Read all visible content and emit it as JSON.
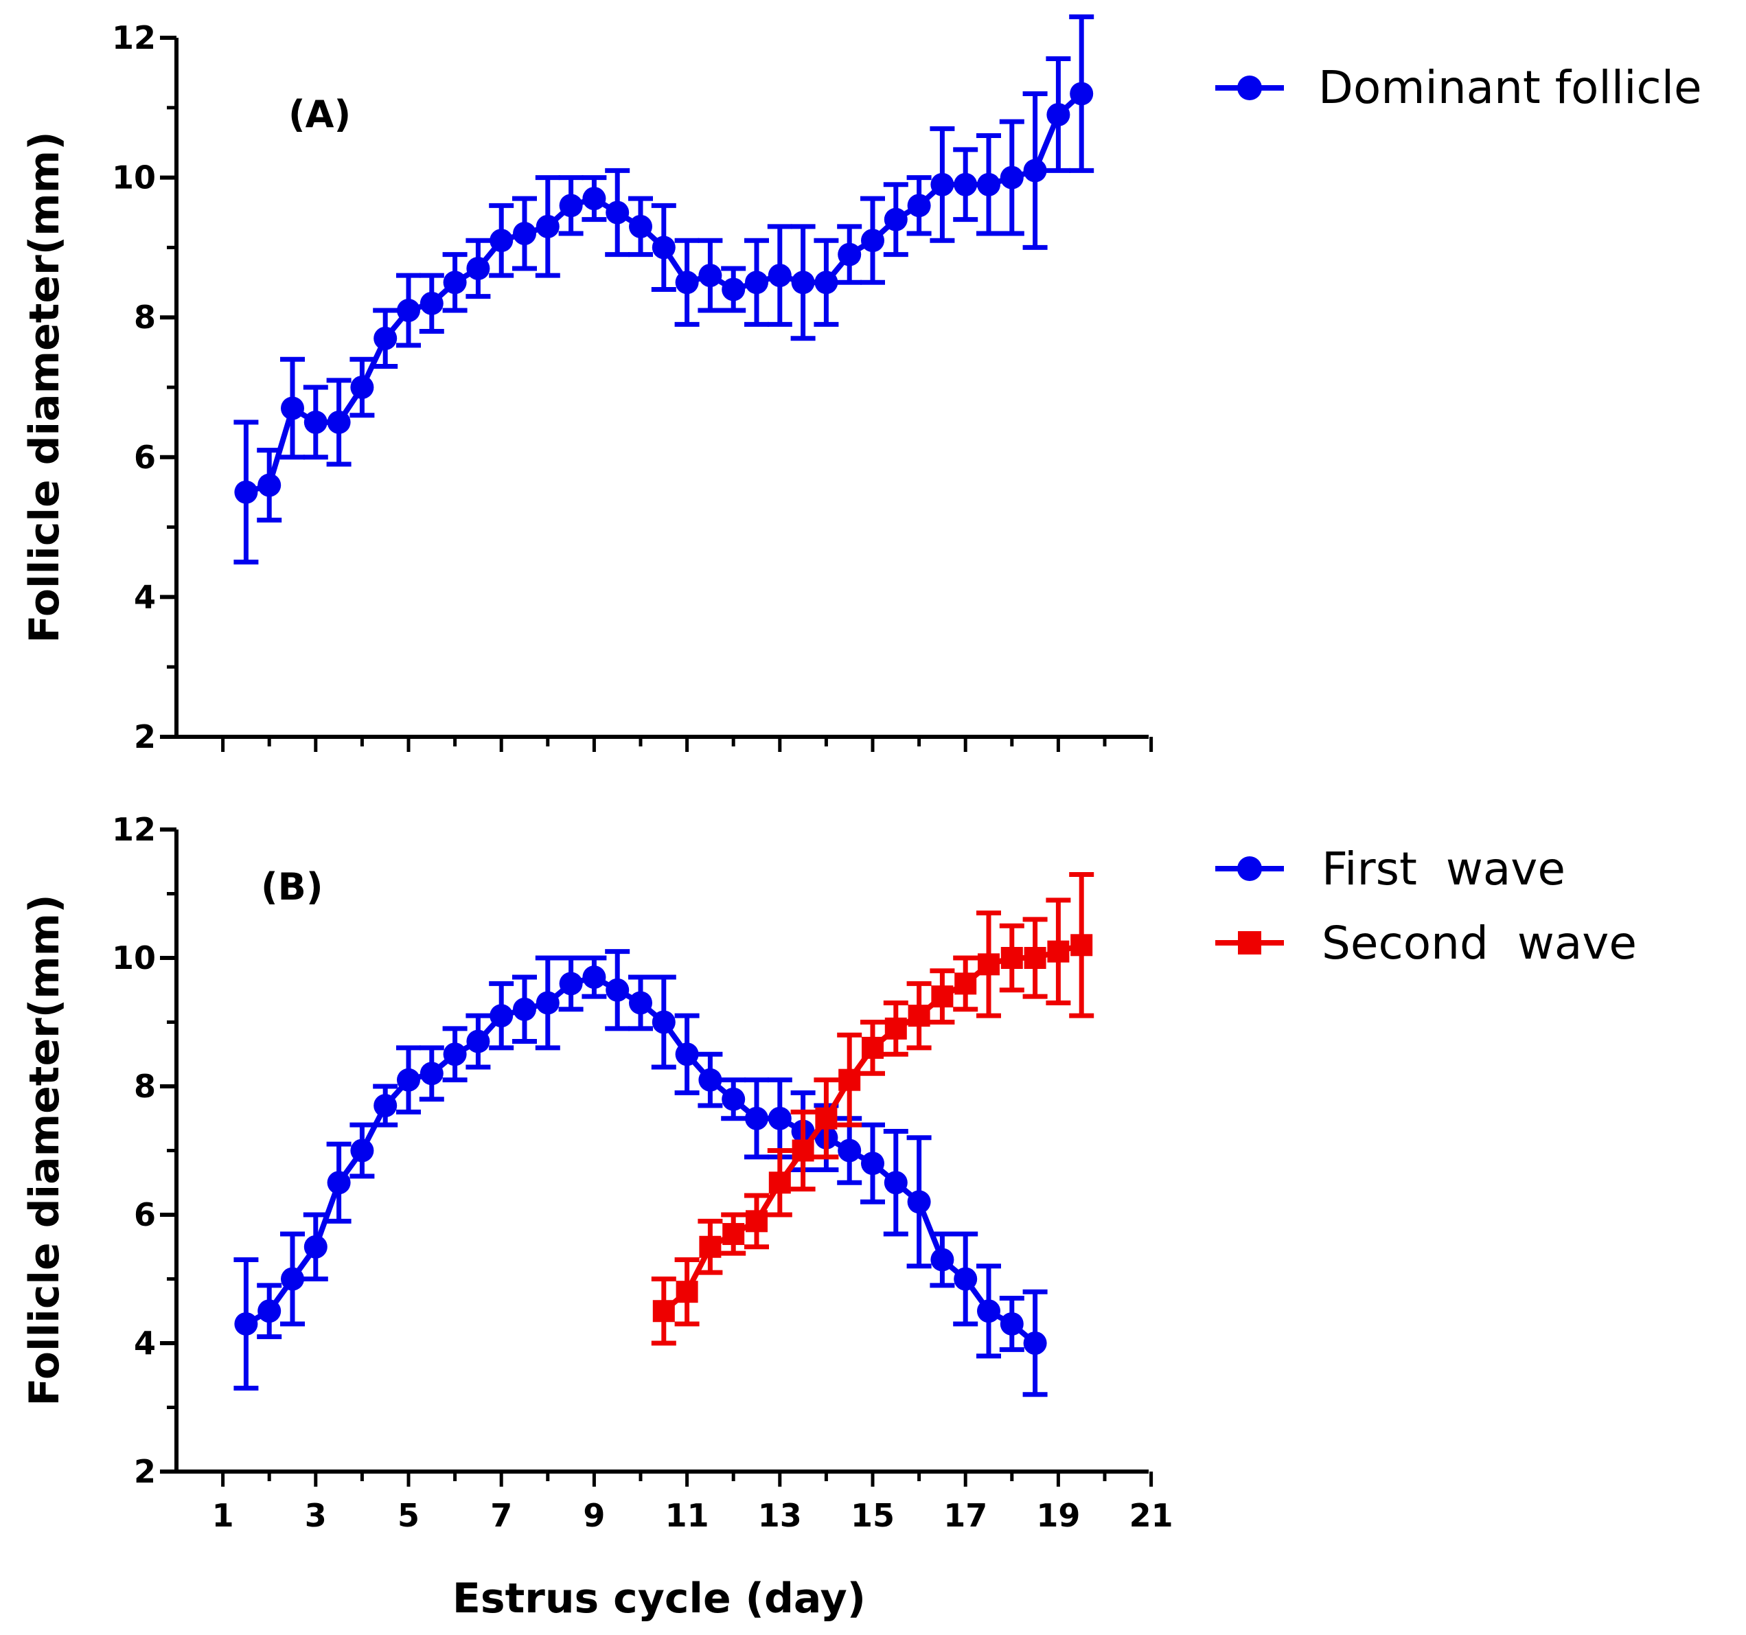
{
  "chart_data": [
    {
      "type": "line",
      "panel_label": "(A)",
      "xlabel": "",
      "ylabel": "Follicle diameter(mm)",
      "xlim": [
        0,
        21
      ],
      "ylim": [
        2,
        12
      ],
      "xticks": [
        1,
        3,
        5,
        7,
        9,
        11,
        13,
        15,
        17,
        19,
        21
      ],
      "yticks": [
        2,
        4,
        6,
        8,
        10,
        12
      ],
      "show_x_tick_labels": false,
      "grid": false,
      "legend_position": "top-right outside",
      "series": [
        {
          "name": "Dominant follicle",
          "color": "#0000ee",
          "marker": "circle",
          "x": [
            1.5,
            2,
            2.5,
            3,
            3.5,
            4,
            4.5,
            5,
            5.5,
            6,
            6.5,
            7,
            7.5,
            8,
            8.5,
            9,
            9.5,
            10,
            10.5,
            11,
            11.5,
            12,
            12.5,
            13,
            13.5,
            14,
            14.5,
            15,
            15.5,
            16,
            16.5,
            17,
            17.5,
            18,
            18.5,
            19,
            19.5
          ],
          "y": [
            5.5,
            5.6,
            6.7,
            6.5,
            6.5,
            7.0,
            7.7,
            8.1,
            8.2,
            8.5,
            8.7,
            9.1,
            9.2,
            9.3,
            9.6,
            9.7,
            9.5,
            9.3,
            9.0,
            8.5,
            8.6,
            8.4,
            8.5,
            8.6,
            8.5,
            8.5,
            8.9,
            9.1,
            9.4,
            9.6,
            9.9,
            9.9,
            9.9,
            10.0,
            10.1,
            10.9,
            11.2
          ],
          "error": [
            1.0,
            0.5,
            0.7,
            0.5,
            0.6,
            0.4,
            0.4,
            0.5,
            0.4,
            0.4,
            0.4,
            0.5,
            0.5,
            0.7,
            0.4,
            0.3,
            0.6,
            0.4,
            0.6,
            0.6,
            0.5,
            0.3,
            0.6,
            0.7,
            0.8,
            0.6,
            0.4,
            0.6,
            0.5,
            0.4,
            0.8,
            0.5,
            0.7,
            0.8,
            1.1,
            0.8,
            1.1
          ]
        }
      ]
    },
    {
      "type": "line",
      "panel_label": "(B)",
      "xlabel": "Estrus cycle (day)",
      "ylabel": "Follicle diameter(mm)",
      "xlim": [
        0,
        21
      ],
      "ylim": [
        2,
        12
      ],
      "xticks": [
        1,
        3,
        5,
        7,
        9,
        11,
        13,
        15,
        17,
        19,
        21
      ],
      "yticks": [
        2,
        4,
        6,
        8,
        10,
        12
      ],
      "show_x_tick_labels": true,
      "grid": false,
      "legend_position": "top-right outside",
      "series": [
        {
          "name": "First  wave",
          "color": "#0000ee",
          "marker": "circle",
          "x": [
            1.5,
            2,
            2.5,
            3,
            3.5,
            4,
            4.5,
            5,
            5.5,
            6,
            6.5,
            7,
            7.5,
            8,
            8.5,
            9,
            9.5,
            10,
            10.5,
            11,
            11.5,
            12,
            12.5,
            13,
            13.5,
            14,
            14.5,
            15,
            15.5,
            16,
            16.5,
            17,
            17.5,
            18,
            18.5
          ],
          "y": [
            4.3,
            4.5,
            5.0,
            5.5,
            6.5,
            7.0,
            7.7,
            8.1,
            8.2,
            8.5,
            8.7,
            9.1,
            9.2,
            9.3,
            9.6,
            9.7,
            9.5,
            9.3,
            9.0,
            8.5,
            8.1,
            7.8,
            7.5,
            7.5,
            7.3,
            7.2,
            7.0,
            6.8,
            6.5,
            6.2,
            5.3,
            5.0,
            4.5,
            4.3,
            4.0
          ],
          "error": [
            1.0,
            0.4,
            0.7,
            0.5,
            0.6,
            0.4,
            0.3,
            0.5,
            0.4,
            0.4,
            0.4,
            0.5,
            0.5,
            0.7,
            0.4,
            0.3,
            0.6,
            0.4,
            0.7,
            0.6,
            0.4,
            0.3,
            0.6,
            0.6,
            0.6,
            0.5,
            0.5,
            0.6,
            0.8,
            1.0,
            0.4,
            0.7,
            0.7,
            0.4,
            0.8
          ]
        },
        {
          "name": "Second  wave",
          "color": "#ee0000",
          "marker": "square",
          "x": [
            10.5,
            11,
            11.5,
            12,
            12.5,
            13,
            13.5,
            14,
            14.5,
            15,
            15.5,
            16,
            16.5,
            17,
            17.5,
            18,
            18.5,
            19,
            19.5
          ],
          "y": [
            4.5,
            4.8,
            5.5,
            5.7,
            5.9,
            6.5,
            7.0,
            7.5,
            8.1,
            8.6,
            8.9,
            9.1,
            9.4,
            9.6,
            9.9,
            10.0,
            10.0,
            10.1,
            10.2
          ],
          "error": [
            0.5,
            0.5,
            0.4,
            0.3,
            0.4,
            0.5,
            0.6,
            0.6,
            0.7,
            0.4,
            0.4,
            0.5,
            0.4,
            0.4,
            0.8,
            0.5,
            0.6,
            0.8,
            1.1
          ]
        }
      ]
    }
  ]
}
